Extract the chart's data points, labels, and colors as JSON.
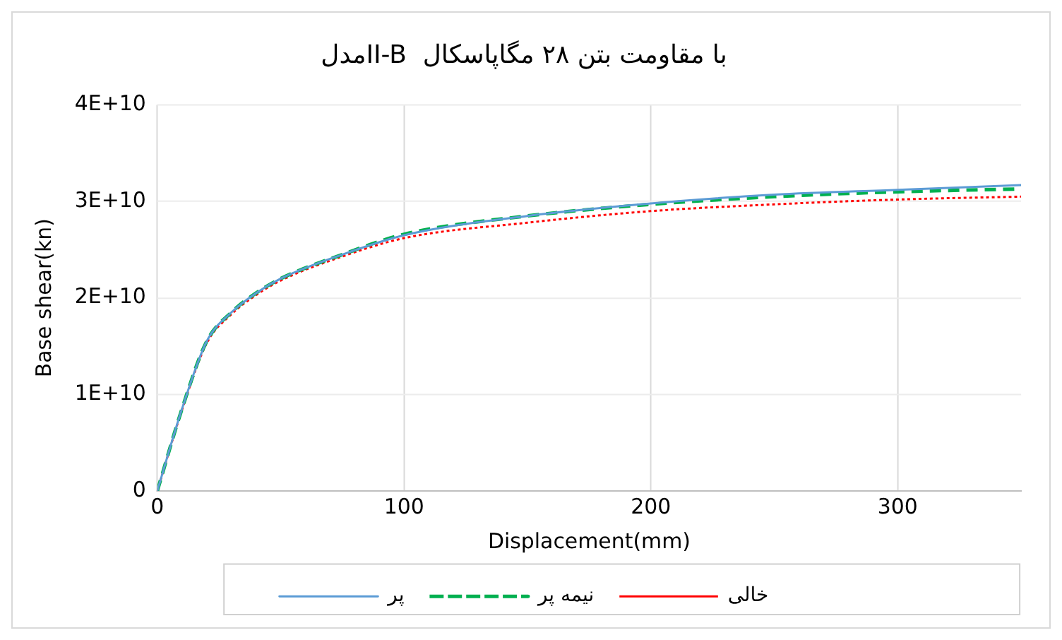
{
  "chart_data": {
    "type": "line",
    "title": "مدلII-B  با مقاومت بتن ۲۸ مگاپاسکال",
    "xlabel": "Displacement(mm)",
    "ylabel": "Base shear(kn)",
    "xlim": [
      0,
      350
    ],
    "xticks": [
      0,
      100,
      200,
      300
    ],
    "ylim": [
      0,
      40000000000
    ],
    "yticks": [
      0,
      {
        "value": 10000000000,
        "label": "1E+10"
      },
      {
        "value": 20000000000,
        "label": "2E+10"
      },
      {
        "value": 30000000000,
        "label": "3E+10"
      },
      {
        "value": 40000000000,
        "label": "4E+10"
      }
    ],
    "grid": true,
    "legend": "bottom",
    "marker": "none",
    "series": [
      {
        "name": "پر",
        "color": "#5b9bd5",
        "line_style": "solid",
        "x": [
          0,
          10,
          20,
          30,
          40,
          50,
          75,
          100,
          150,
          200,
          250,
          300,
          350
        ],
        "values": [
          0,
          8500000000,
          15500000000,
          18500000000,
          20500000000,
          22000000000,
          24500000000,
          26500000000,
          28500000000,
          29800000000,
          30700000000,
          31200000000,
          31700000000
        ]
      },
      {
        "name": "نیمه پر",
        "color": "#00b050",
        "line_style": "dashed",
        "x": [
          0,
          10,
          20,
          30,
          40,
          50,
          75,
          100,
          150,
          200,
          250,
          300,
          350
        ],
        "values": [
          0,
          8500000000,
          15500000000,
          18500000000,
          20500000000,
          22000000000,
          24500000000,
          26600000000,
          28500000000,
          29700000000,
          30500000000,
          31000000000,
          31300000000
        ]
      },
      {
        "name": "خالی",
        "color": "#ff0000",
        "line_style": "dotted",
        "x": [
          0,
          10,
          20,
          30,
          40,
          50,
          75,
          100,
          150,
          200,
          250,
          300,
          350
        ],
        "values": [
          0,
          8400000000,
          15300000000,
          18300000000,
          20300000000,
          21800000000,
          24300000000,
          26200000000,
          27800000000,
          29000000000,
          29700000000,
          30200000000,
          30500000000
        ]
      }
    ]
  }
}
